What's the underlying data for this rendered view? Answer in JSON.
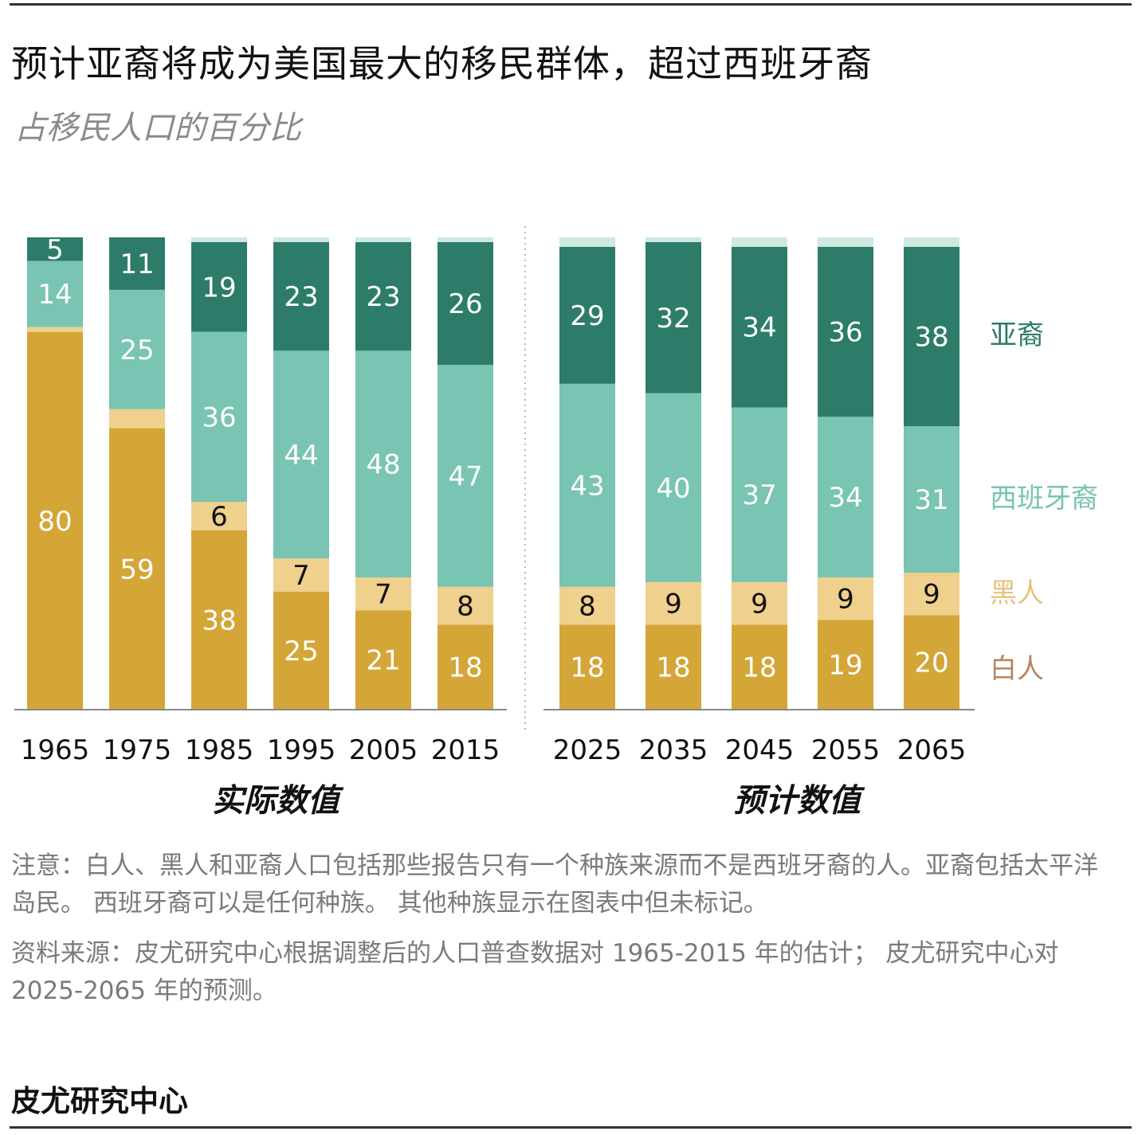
{
  "header": {
    "title": "预计亚裔将成为美国最大的移民群体，超过西班牙裔",
    "subtitle": "占移民人口的百分比"
  },
  "chart_data": {
    "type": "bar",
    "stacked": true,
    "y_unit": "percent of immigrant population",
    "ylim": [
      0,
      100
    ],
    "grid": false,
    "legend_position": "right",
    "categories": [
      "1965",
      "1975",
      "1985",
      "1995",
      "2005",
      "2015",
      "2025",
      "2035",
      "2045",
      "2055",
      "2065"
    ],
    "groups": [
      {
        "label": "实际数值",
        "categories": [
          "1965",
          "1975",
          "1985",
          "1995",
          "2005",
          "2015"
        ]
      },
      {
        "label": "预计数值",
        "categories": [
          "2025",
          "2035",
          "2045",
          "2055",
          "2065"
        ]
      }
    ],
    "series": [
      {
        "name": "白人",
        "color": "#D4A637",
        "values": [
          80,
          59,
          38,
          25,
          21,
          18,
          18,
          18,
          18,
          19,
          20
        ],
        "labels": [
          "80",
          "59",
          "38",
          "25",
          "21",
          "18",
          "18",
          "18",
          "18",
          "19",
          "20"
        ]
      },
      {
        "name": "黑人",
        "color": "#EFD08C",
        "values": [
          1,
          4,
          6,
          7,
          7,
          8,
          8,
          9,
          9,
          9,
          9
        ],
        "labels": [
          "",
          "",
          "6",
          "7",
          "7",
          "8",
          "8",
          "9",
          "9",
          "9",
          "9"
        ]
      },
      {
        "name": "西班牙裔",
        "color": "#79C4B2",
        "values": [
          14,
          25,
          36,
          44,
          48,
          47,
          43,
          40,
          37,
          34,
          31
        ],
        "labels": [
          "14",
          "25",
          "36",
          "44",
          "48",
          "47",
          "43",
          "40",
          "37",
          "34",
          "31"
        ]
      },
      {
        "name": "亚裔",
        "color": "#2D7C69",
        "values": [
          5,
          11,
          19,
          23,
          23,
          26,
          29,
          32,
          34,
          36,
          38
        ],
        "labels": [
          "5",
          "11",
          "19",
          "23",
          "23",
          "26",
          "29",
          "32",
          "34",
          "36",
          "38"
        ]
      },
      {
        "color": "#CDE9E2",
        "values": [
          0,
          0,
          1,
          1,
          1,
          1,
          2,
          1,
          2,
          2,
          2
        ],
        "labels": [
          "",
          "",
          "",
          "",
          "",
          "",
          "",
          "",
          "",
          "",
          ""
        ]
      }
    ],
    "legend": [
      {
        "label": "亚裔",
        "color": "#2D7C69"
      },
      {
        "label": "西班牙裔",
        "color": "#79C4B2"
      },
      {
        "label": "黑人",
        "color": "#E6C37A"
      },
      {
        "label": "白人",
        "color": "#B8845E"
      }
    ],
    "label_colors": {
      "light": "#ffffff",
      "dark": "#111111"
    }
  },
  "notes": {
    "note": "注意：白人、黑人和亚裔人口包括那些报告只有一个种族来源而不是西班牙裔的人。亚裔包括太平洋岛民。 西班牙裔可以是任何种族。 其他种族显示在图表中但未标记。",
    "source": "资料来源：皮尤研究中心根据调整后的人口普查数据对 1965-2015 年的估计； 皮尤研究中心对 2025-2065 年的预测。"
  },
  "footer": {
    "org": "皮尤研究中心"
  }
}
